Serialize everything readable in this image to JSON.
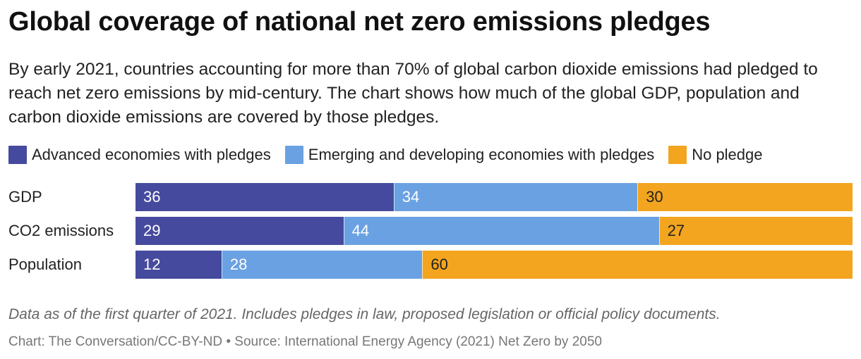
{
  "title": "Global coverage of national net zero emissions pledges",
  "subtitle": "By early 2021, countries accounting for more than 70% of global carbon dioxide emissions had pledged to reach net zero emissions by mid-century. The chart shows how much of the global GDP, population and carbon dioxide emissions are covered by those pledges.",
  "note": "Data as of the first quarter of 2021. Includes pledges in law, proposed legislation or official policy documents.",
  "source": "Chart: The Conversation/CC-BY-ND • Source: International Energy Agency (2021) Net Zero by 2050",
  "chart_data": {
    "type": "bar",
    "orientation": "horizontal",
    "stacked": true,
    "categories": [
      "GDP",
      "CO2 emissions",
      "Population"
    ],
    "series": [
      {
        "name": "Advanced economies with pledges",
        "color": "#454a9e",
        "label_color": "#ffffff",
        "values": [
          36,
          29,
          12
        ]
      },
      {
        "name": "Emerging and developing economies with pledges",
        "color": "#6aa1e2",
        "label_color": "#ffffff",
        "values": [
          34,
          44,
          28
        ]
      },
      {
        "name": "No pledge",
        "color": "#f3a51f",
        "label_color": "#222222",
        "values": [
          30,
          27,
          60
        ]
      }
    ],
    "xlim": [
      0,
      100
    ],
    "grid": false,
    "legend_position": "top-left"
  }
}
